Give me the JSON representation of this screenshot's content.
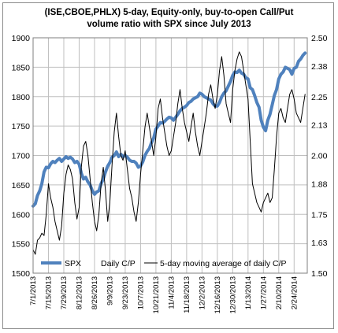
{
  "chart_data": {
    "type": "line",
    "title_lines": [
      "(ISE,CBOE,PHLX) 5-day, Equity-only, buy-to-open Call/Put",
      "volume ratio with SPX since July 2013"
    ],
    "x_tick_labels": [
      "7/1/2013",
      "7/15/2013",
      "7/29/2013",
      "8/12/2013",
      "8/26/2013",
      "9/9/2013",
      "9/23/2013",
      "10/7/2013",
      "10/21/2013",
      "11/4/2013",
      "11/18/2013",
      "12/2/2013",
      "12/16/2013",
      "12/30/2013",
      "1/13/2014",
      "1/27/2014",
      "2/10/2014",
      "2/24/2014"
    ],
    "x_ticks": [
      0,
      14,
      28,
      42,
      56,
      70,
      84,
      98,
      112,
      126,
      140,
      154,
      168,
      182,
      196,
      210,
      224,
      238
    ],
    "xlim": [
      0,
      250
    ],
    "left_axis": {
      "ylim": [
        1500,
        1900
      ],
      "ticks": [
        1500,
        1550,
        1600,
        1650,
        1700,
        1750,
        1800,
        1850,
        1900
      ]
    },
    "right_axis": {
      "ylim": [
        1.5,
        2.5
      ],
      "ticks": [
        "1.50",
        "1.63",
        "1.75",
        "1.88",
        "2.00",
        "2.13",
        "2.25",
        "2.38",
        "2.50"
      ]
    },
    "grid": true,
    "legend_position": "bottom-left inside",
    "series": [
      {
        "name": "SPX",
        "axis": "left",
        "color": "#4f81bd",
        "x": [
          0,
          2,
          4,
          6,
          8,
          10,
          12,
          14,
          16,
          18,
          20,
          22,
          24,
          26,
          28,
          30,
          32,
          34,
          36,
          38,
          40,
          42,
          44,
          46,
          48,
          50,
          52,
          54,
          56,
          58,
          60,
          62,
          64,
          66,
          68,
          70,
          72,
          74,
          76,
          78,
          80,
          82,
          84,
          86,
          88,
          90,
          92,
          94,
          96,
          98,
          100,
          102,
          104,
          106,
          108,
          110,
          112,
          114,
          116,
          118,
          120,
          122,
          124,
          126,
          128,
          130,
          132,
          134,
          136,
          138,
          140,
          142,
          144,
          146,
          148,
          150,
          152,
          154,
          156,
          158,
          160,
          162,
          164,
          166,
          168,
          170,
          172,
          174,
          176,
          178,
          180,
          182,
          184,
          186,
          188,
          190,
          192,
          194,
          196,
          198,
          200,
          202,
          204,
          206,
          208,
          210,
          212,
          214,
          216,
          218,
          220,
          222,
          224,
          226,
          228,
          230,
          232,
          234,
          236,
          238,
          240,
          242,
          244,
          246,
          248
        ],
        "values": [
          1614,
          1618,
          1632,
          1640,
          1652,
          1672,
          1680,
          1679,
          1686,
          1690,
          1688,
          1692,
          1695,
          1690,
          1694,
          1698,
          1695,
          1697,
          1694,
          1688,
          1690,
          1685,
          1670,
          1660,
          1663,
          1655,
          1650,
          1640,
          1634,
          1638,
          1640,
          1652,
          1660,
          1672,
          1682,
          1688,
          1697,
          1700,
          1706,
          1698,
          1702,
          1698,
          1700,
          1697,
          1692,
          1690,
          1690,
          1687,
          1680,
          1682,
          1689,
          1700,
          1707,
          1712,
          1722,
          1730,
          1745,
          1750,
          1756,
          1755,
          1758,
          1762,
          1765,
          1764,
          1760,
          1765,
          1770,
          1776,
          1780,
          1782,
          1785,
          1790,
          1792,
          1796,
          1798,
          1800,
          1806,
          1804,
          1800,
          1798,
          1796,
          1794,
          1788,
          1784,
          1784,
          1790,
          1800,
          1806,
          1810,
          1818,
          1826,
          1836,
          1842,
          1841,
          1845,
          1840,
          1838,
          1832,
          1830,
          1815,
          1812,
          1802,
          1790,
          1782,
          1760,
          1748,
          1742,
          1760,
          1770,
          1786,
          1802,
          1812,
          1830,
          1838,
          1842,
          1850,
          1848,
          1846,
          1838,
          1848,
          1850,
          1860,
          1864,
          1870,
          1874
        ]
      },
      {
        "name": "Daily C/P",
        "axis": "right",
        "color": "#5b9bd5",
        "x": [],
        "values": []
      },
      {
        "name": "5-day moving  average of daily C/P",
        "axis": "right",
        "color": "#000000",
        "x": [
          0,
          2,
          4,
          6,
          8,
          10,
          12,
          14,
          16,
          18,
          20,
          22,
          24,
          26,
          28,
          30,
          32,
          34,
          36,
          38,
          40,
          42,
          44,
          46,
          48,
          50,
          52,
          54,
          56,
          58,
          60,
          62,
          64,
          66,
          68,
          70,
          72,
          74,
          76,
          78,
          80,
          82,
          84,
          86,
          88,
          90,
          92,
          94,
          96,
          98,
          100,
          102,
          104,
          106,
          108,
          110,
          112,
          114,
          116,
          118,
          120,
          122,
          124,
          126,
          128,
          130,
          132,
          134,
          136,
          138,
          140,
          142,
          144,
          146,
          148,
          150,
          152,
          154,
          156,
          158,
          160,
          162,
          164,
          166,
          168,
          170,
          172,
          174,
          176,
          178,
          180,
          182,
          184,
          186,
          188,
          190,
          192,
          194,
          196,
          198,
          200,
          202,
          204,
          206,
          208,
          210,
          212,
          214,
          216,
          218,
          220,
          222,
          224,
          226,
          228,
          230,
          232,
          234,
          236,
          238,
          240,
          242,
          244,
          246,
          248
        ],
        "values": [
          1.6,
          1.58,
          1.64,
          1.65,
          1.67,
          1.66,
          1.75,
          1.88,
          1.82,
          1.78,
          1.72,
          1.68,
          1.64,
          1.7,
          1.84,
          1.92,
          1.96,
          1.94,
          1.9,
          1.8,
          1.73,
          1.78,
          1.95,
          2.04,
          2.06,
          2.0,
          1.9,
          1.8,
          1.72,
          1.68,
          1.75,
          1.88,
          1.95,
          1.85,
          1.72,
          1.8,
          1.96,
          2.1,
          2.18,
          2.08,
          2.0,
          1.98,
          2.02,
          1.94,
          1.86,
          1.82,
          1.76,
          1.72,
          1.8,
          1.92,
          2.02,
          2.12,
          2.18,
          2.12,
          2.06,
          2.0,
          2.08,
          2.2,
          2.24,
          2.16,
          2.1,
          2.04,
          2.0,
          2.02,
          2.08,
          2.14,
          2.22,
          2.28,
          2.2,
          2.14,
          2.1,
          2.06,
          2.12,
          2.18,
          2.1,
          2.04,
          2.0,
          2.06,
          2.12,
          2.18,
          2.26,
          2.3,
          2.24,
          2.2,
          2.26,
          2.36,
          2.42,
          2.34,
          2.22,
          2.18,
          2.14,
          2.28,
          2.36,
          2.41,
          2.44,
          2.42,
          2.36,
          2.3,
          2.24,
          2.06,
          1.88,
          1.84,
          1.8,
          1.78,
          1.76,
          1.8,
          1.82,
          1.84,
          1.8,
          1.82,
          1.94,
          2.08,
          2.18,
          2.2,
          2.16,
          2.14,
          2.2,
          2.26,
          2.28,
          2.24,
          2.18,
          2.16,
          2.14,
          2.2,
          2.26
        ]
      }
    ]
  }
}
